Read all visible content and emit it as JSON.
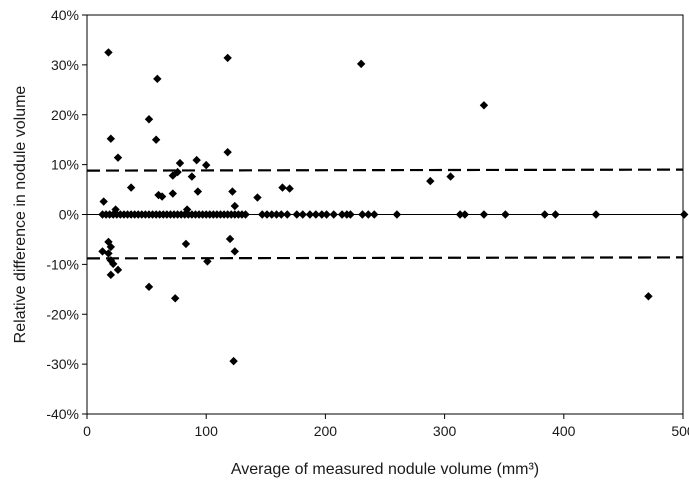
{
  "chart_data": {
    "type": "scatter",
    "xlabel": "Average of measured nodule volume (mm³)",
    "ylabel": "Relative difference in nodule volume",
    "xlim": [
      0,
      500
    ],
    "ylim": [
      -40,
      40
    ],
    "x_ticks": [
      0,
      100,
      200,
      300,
      400,
      500
    ],
    "y_ticks": [
      -40,
      -30,
      -20,
      -10,
      0,
      10,
      20,
      30,
      40
    ],
    "x_tick_labels": [
      "0",
      "100",
      "200",
      "300",
      "400",
      "500"
    ],
    "y_tick_labels": [
      "-40%",
      "-30%",
      "-20%",
      "-10%",
      "0%",
      "10%",
      "20%",
      "30%",
      "40%"
    ],
    "grid": false,
    "legend": "none",
    "marker": "diamond",
    "marker_color": "#000000",
    "zero_line": 0,
    "limits_of_agreement": [
      {
        "x": [
          0,
          500
        ],
        "y": [
          8.8,
          9.0
        ]
      },
      {
        "x": [
          0,
          500
        ],
        "y": [
          -8.8,
          -8.6
        ]
      }
    ],
    "series": [
      {
        "values": [
          [
            18,
            32.5
          ],
          [
            59,
            27.2
          ],
          [
            118,
            31.4
          ],
          [
            230,
            30.2
          ],
          [
            333,
            21.9
          ],
          [
            52,
            19.1
          ],
          [
            58,
            15.0
          ],
          [
            20,
            15.2
          ],
          [
            26,
            11.4
          ],
          [
            118,
            12.5
          ],
          [
            92,
            10.9
          ],
          [
            100,
            9.9
          ],
          [
            78,
            10.3
          ],
          [
            76,
            8.5
          ],
          [
            72,
            7.8
          ],
          [
            88,
            7.6
          ],
          [
            37,
            5.4
          ],
          [
            72,
            4.2
          ],
          [
            60,
            3.9
          ],
          [
            63,
            3.6
          ],
          [
            93,
            4.6
          ],
          [
            122,
            4.6
          ],
          [
            143,
            3.4
          ],
          [
            164,
            5.4
          ],
          [
            170,
            5.2
          ],
          [
            288,
            6.7
          ],
          [
            305,
            7.6
          ],
          [
            14,
            2.6
          ],
          [
            124,
            1.7
          ],
          [
            84,
            1.0
          ],
          [
            24,
            1.0
          ],
          [
            20,
            -6.5
          ],
          [
            18,
            -5.5
          ],
          [
            13,
            -7.4
          ],
          [
            18,
            -7.8
          ],
          [
            20,
            -9.2
          ],
          [
            22,
            -9.9
          ],
          [
            26,
            -11.1
          ],
          [
            20,
            -12.1
          ],
          [
            83,
            -5.9
          ],
          [
            101,
            -9.4
          ],
          [
            120,
            -4.9
          ],
          [
            124,
            -7.4
          ],
          [
            52,
            -14.5
          ],
          [
            74,
            -16.8
          ],
          [
            123,
            -29.4
          ],
          [
            471,
            -16.4
          ],
          [
            13,
            0
          ],
          [
            16,
            0
          ],
          [
            19,
            0
          ],
          [
            22,
            0
          ],
          [
            25,
            0
          ],
          [
            28,
            0
          ],
          [
            31,
            0
          ],
          [
            34,
            0
          ],
          [
            37,
            0
          ],
          [
            40,
            0
          ],
          [
            43,
            0
          ],
          [
            46,
            0
          ],
          [
            49,
            0
          ],
          [
            52,
            0
          ],
          [
            55,
            0
          ],
          [
            58,
            0
          ],
          [
            61,
            0
          ],
          [
            64,
            0
          ],
          [
            67,
            0
          ],
          [
            70,
            0
          ],
          [
            73,
            0
          ],
          [
            76,
            0
          ],
          [
            79,
            0
          ],
          [
            82,
            0
          ],
          [
            85,
            0
          ],
          [
            88,
            0
          ],
          [
            91,
            0
          ],
          [
            94,
            0
          ],
          [
            97,
            0
          ],
          [
            100,
            0
          ],
          [
            103,
            0
          ],
          [
            106,
            0
          ],
          [
            109,
            0
          ],
          [
            112,
            0
          ],
          [
            115,
            0
          ],
          [
            118,
            0
          ],
          [
            121,
            0
          ],
          [
            124,
            0
          ],
          [
            127,
            0
          ],
          [
            130,
            0
          ],
          [
            133,
            0
          ],
          [
            147,
            0
          ],
          [
            151,
            0
          ],
          [
            155,
            0
          ],
          [
            159,
            0
          ],
          [
            163,
            0
          ],
          [
            168,
            0
          ],
          [
            176,
            0
          ],
          [
            181,
            0
          ],
          [
            187,
            0
          ],
          [
            192,
            0
          ],
          [
            197,
            0
          ],
          [
            201,
            0
          ],
          [
            207,
            0
          ],
          [
            214,
            0
          ],
          [
            218,
            0
          ],
          [
            221,
            0
          ],
          [
            231,
            0
          ],
          [
            236,
            0
          ],
          [
            241,
            0
          ],
          [
            260,
            0
          ],
          [
            313,
            0
          ],
          [
            317,
            0
          ],
          [
            333,
            0
          ],
          [
            351,
            0
          ],
          [
            384,
            0
          ],
          [
            393,
            0
          ],
          [
            427,
            0
          ],
          [
            501,
            0
          ]
        ]
      }
    ]
  }
}
